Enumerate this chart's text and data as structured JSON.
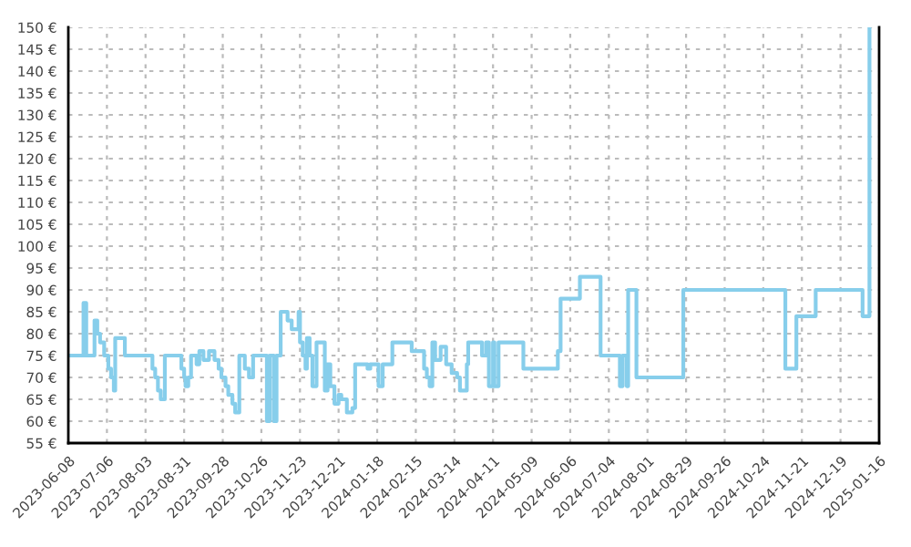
{
  "chart_data": {
    "type": "step",
    "x": [
      "2023-06-08",
      "2023-06-19",
      "2023-06-21",
      "2023-06-27",
      "2023-06-29",
      "2023-07-01",
      "2023-07-04",
      "2023-07-07",
      "2023-07-09",
      "2023-07-11",
      "2023-07-12",
      "2023-07-19",
      "2023-08-08",
      "2023-08-10",
      "2023-08-12",
      "2023-08-14",
      "2023-08-17",
      "2023-08-29",
      "2023-08-31",
      "2023-09-01",
      "2023-09-03",
      "2023-09-05",
      "2023-09-09",
      "2023-09-11",
      "2023-09-14",
      "2023-09-18",
      "2023-09-22",
      "2023-09-25",
      "2023-09-27",
      "2023-09-30",
      "2023-10-02",
      "2023-10-05",
      "2023-10-07",
      "2023-10-10",
      "2023-10-14",
      "2023-10-17",
      "2023-10-20",
      "2023-10-30",
      "2023-11-01",
      "2023-11-04",
      "2023-11-06",
      "2023-11-09",
      "2023-11-14",
      "2023-11-17",
      "2023-11-22",
      "2023-11-23",
      "2023-11-25",
      "2023-11-27",
      "2023-11-28",
      "2023-11-30",
      "2023-12-02",
      "2023-12-05",
      "2023-12-11",
      "2023-12-13",
      "2023-12-15",
      "2023-12-18",
      "2023-12-21",
      "2023-12-23",
      "2023-12-27",
      "2023-12-31",
      "2024-01-02",
      "2024-01-11",
      "2024-01-13",
      "2024-01-19",
      "2024-01-22",
      "2024-01-29",
      "2024-02-12",
      "2024-02-21",
      "2024-02-23",
      "2024-02-25",
      "2024-02-27",
      "2024-02-29",
      "2024-03-04",
      "2024-03-08",
      "2024-03-12",
      "2024-03-16",
      "2024-03-18",
      "2024-03-23",
      "2024-03-24",
      "2024-04-03",
      "2024-04-06",
      "2024-04-08",
      "2024-04-11",
      "2024-04-12",
      "2024-04-15",
      "2024-05-03",
      "2024-05-28",
      "2024-05-30",
      "2024-06-13",
      "2024-06-28",
      "2024-07-12",
      "2024-07-14",
      "2024-07-17",
      "2024-07-18",
      "2024-07-24",
      "2024-08-27",
      "2024-11-09",
      "2024-11-17",
      "2024-12-01",
      "2025-01-04",
      "2025-01-09"
    ],
    "series": [
      {
        "color": "#87ceeb",
        "values": [
          75,
          87,
          75,
          83,
          80,
          78,
          75,
          72,
          70,
          67,
          79,
          75,
          72,
          70,
          67,
          65,
          75,
          72,
          70,
          68,
          70,
          75,
          73,
          76,
          74,
          76,
          74,
          72,
          70,
          68,
          66,
          64,
          62,
          75,
          72,
          70,
          75,
          60,
          75,
          60,
          75,
          85,
          83,
          81,
          85,
          78,
          75,
          72,
          79,
          75,
          68,
          78,
          67,
          73,
          68,
          64,
          66,
          65,
          62,
          63,
          73,
          72,
          73,
          68,
          73,
          78,
          76,
          72,
          70,
          68,
          78,
          74,
          77,
          73,
          71,
          70,
          67,
          73,
          78,
          75,
          78,
          68,
          78,
          68,
          78,
          72,
          76,
          88,
          93,
          75,
          68,
          75,
          68,
          90,
          70,
          90,
          72,
          84,
          90,
          84,
          150
        ]
      }
    ],
    "xlim": [
      "2023-06-08",
      "2025-01-16"
    ],
    "xticks": [
      "2023-06-08",
      "2023-07-06",
      "2023-08-03",
      "2023-08-31",
      "2023-09-28",
      "2023-10-26",
      "2023-11-23",
      "2023-12-21",
      "2024-01-18",
      "2024-02-15",
      "2024-03-14",
      "2024-04-11",
      "2024-05-09",
      "2024-06-06",
      "2024-07-04",
      "2024-08-01",
      "2024-08-29",
      "2024-09-26",
      "2024-10-24",
      "2024-11-21",
      "2024-12-19",
      "2025-01-16"
    ],
    "ylim": [
      55,
      150
    ],
    "yticks": [
      {
        "value": 55,
        "label": "55 €"
      },
      {
        "value": 60,
        "label": "60 €"
      },
      {
        "value": 65,
        "label": "65 €"
      },
      {
        "value": 70,
        "label": "70 €"
      },
      {
        "value": 75,
        "label": "75 €"
      },
      {
        "value": 80,
        "label": "80 €"
      },
      {
        "value": 85,
        "label": "85 €"
      },
      {
        "value": 90,
        "label": "90 €"
      },
      {
        "value": 95,
        "label": "95 €"
      },
      {
        "value": 100,
        "label": "100 €"
      },
      {
        "value": 105,
        "label": "105 €"
      },
      {
        "value": 110,
        "label": "110 €"
      },
      {
        "value": 115,
        "label": "115 €"
      },
      {
        "value": 120,
        "label": "120 €"
      },
      {
        "value": 125,
        "label": "125 €"
      },
      {
        "value": 130,
        "label": "130 €"
      },
      {
        "value": 135,
        "label": "135 €"
      },
      {
        "value": 140,
        "label": "140 €"
      },
      {
        "value": 145,
        "label": "145 €"
      },
      {
        "value": 150,
        "label": "150 €"
      }
    ],
    "grid": true
  }
}
